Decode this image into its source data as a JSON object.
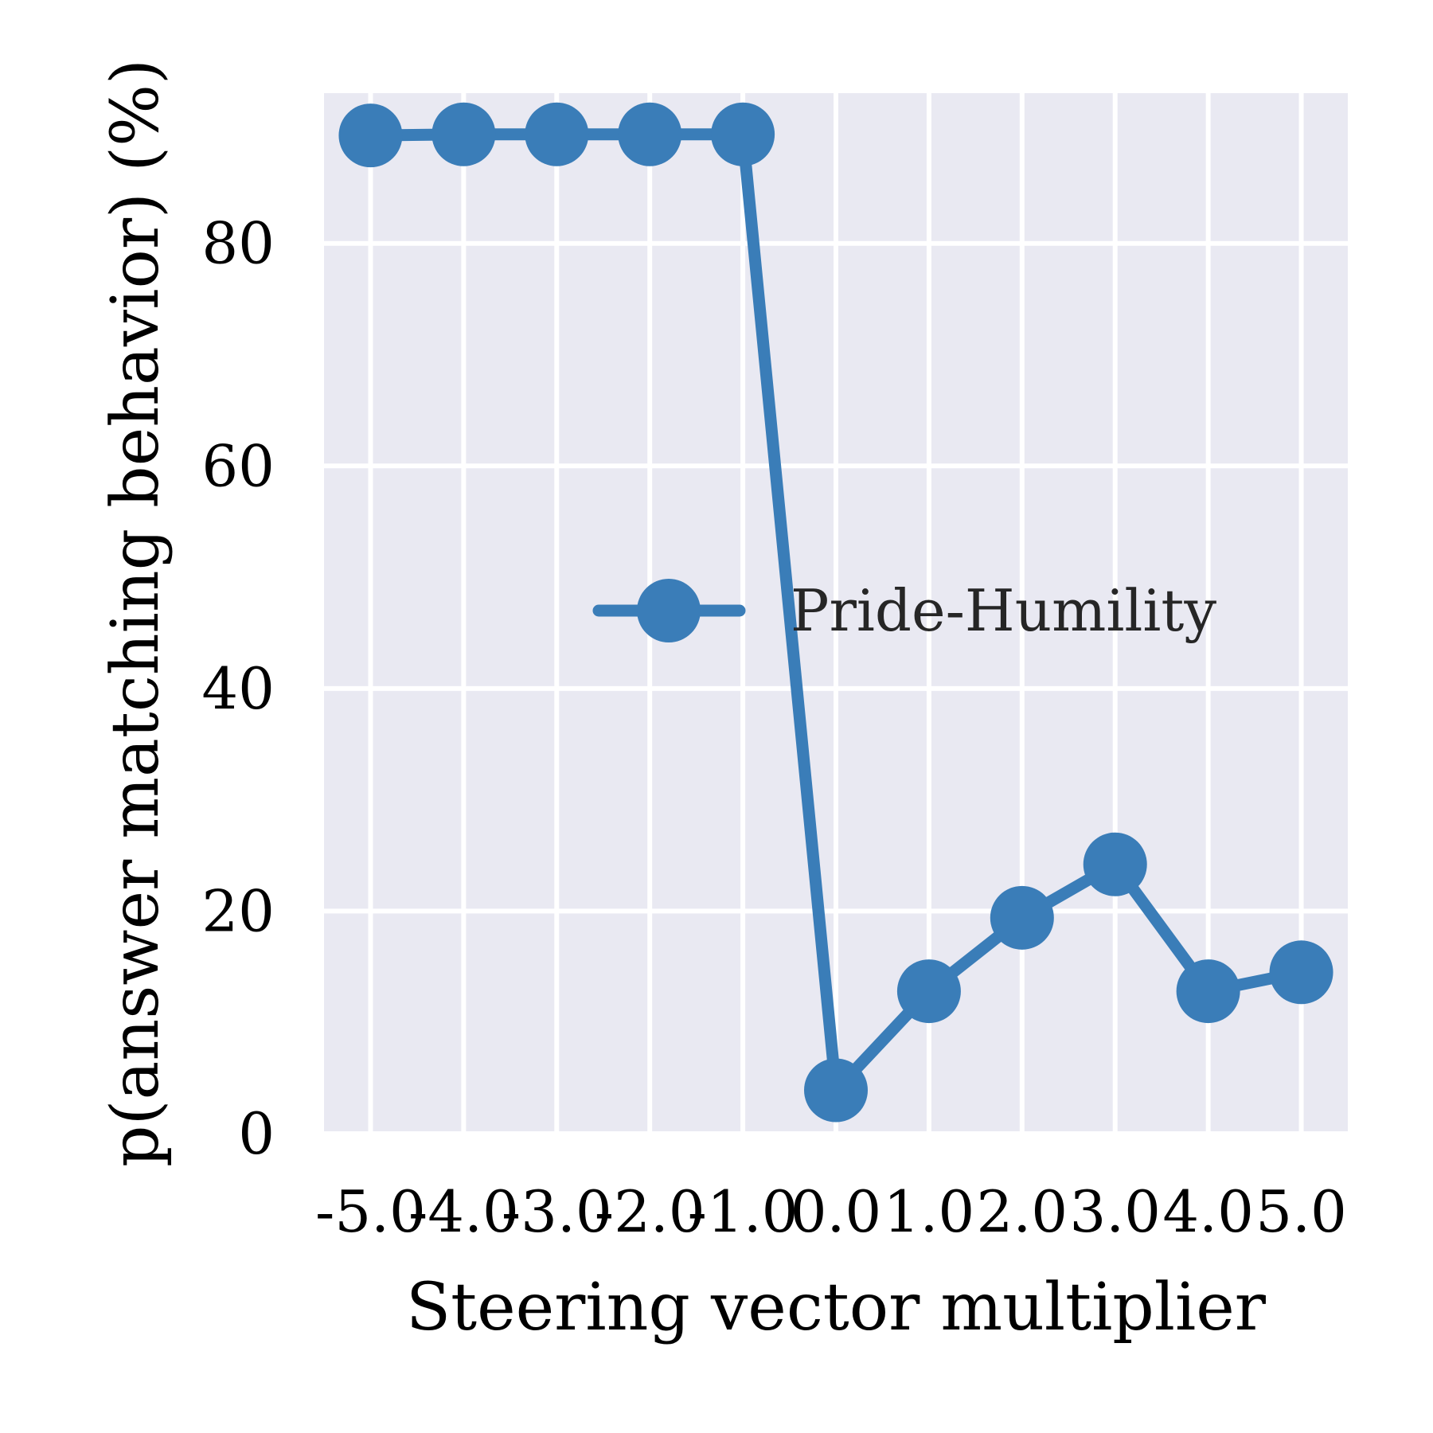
{
  "chart_data": {
    "type": "line",
    "xlabel": "Steering vector multiplier",
    "ylabel": "p(answer matching behavior) (%)",
    "x": [
      -5.0,
      -4.0,
      -3.0,
      -2.0,
      -1.0,
      0.0,
      1.0,
      2.0,
      3.0,
      4.0,
      5.0
    ],
    "x_tick_labels": [
      "-5.0",
      "-4.0",
      "-3.0",
      "-2.0",
      "-1.0",
      "0.0",
      "1.0",
      "2.0",
      "3.0",
      "4.0",
      "5.0"
    ],
    "y_ticks": [
      0,
      20,
      40,
      60,
      80
    ],
    "y_tick_labels": [
      "0",
      "20",
      "40",
      "60",
      "80"
    ],
    "xlim": [
      -5.5,
      5.5
    ],
    "ylim": [
      0,
      93.5
    ],
    "grid": true,
    "legend_position": "center-right",
    "series": [
      {
        "name": "Pride-Humility",
        "color": "#3a7db8",
        "values": [
          89.7,
          89.8,
          89.8,
          89.8,
          89.8,
          3.9,
          12.8,
          19.4,
          24.2,
          12.8,
          14.5
        ]
      }
    ],
    "colors": {
      "plot_background": "#e9e9f2",
      "grid": "#ffffff",
      "text": "#000000",
      "legend_text": "#262626"
    }
  }
}
